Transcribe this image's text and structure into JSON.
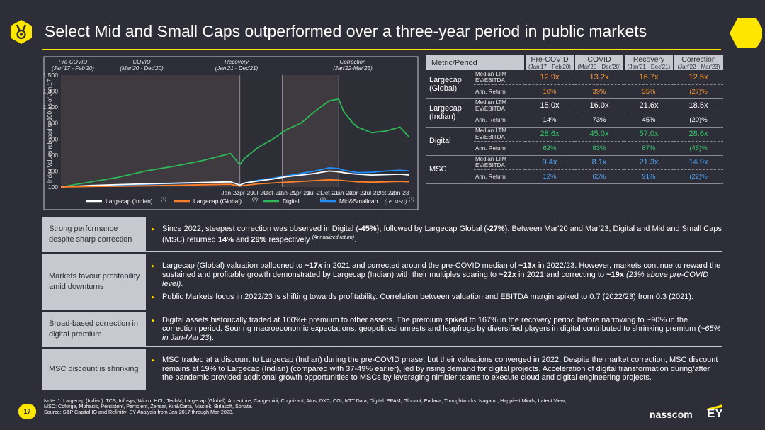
{
  "header": {
    "title": "Select Mid and Small Caps outperformed over a three-year period in public markets"
  },
  "chart_data": {
    "type": "line",
    "ylabel": "Index Values rebased to 100 as of Jan'17",
    "ylim": [
      100,
      1500
    ],
    "yticks": [
      100,
      300,
      500,
      700,
      900,
      1100,
      1300,
      1500
    ],
    "ytick_labels": [
      "100",
      "300",
      "500",
      "700",
      "900",
      "1,100",
      "1,300",
      "1,500"
    ],
    "xlim": [
      0,
      74
    ],
    "xtick_labels": [
      "Jan-20",
      "Apr-20",
      "Jul-20",
      "Oct-20",
      "Jan-21",
      "Apr-21",
      "Jul-21",
      "Oct-21",
      "Jan-22",
      "Apr-22",
      "Jul-22",
      "Oct-22",
      "Jan-23"
    ],
    "xtick_positions": [
      36,
      39,
      42,
      45,
      48,
      51,
      54,
      57,
      60,
      63,
      66,
      69,
      72
    ],
    "phases": [
      {
        "name": "Pre-COVID",
        "range": "(Jan'17 - Feb'20)",
        "start": 0,
        "end": 38
      },
      {
        "name": "COVID",
        "range": "(Mar'20 - Dec'20)",
        "start": 38,
        "end": 47
      },
      {
        "name": "Recovery",
        "range": "(Jan'21 - Dec'21)",
        "start": 47,
        "end": 59
      },
      {
        "name": "Correction",
        "range": "(Jan'22-Mar'23)",
        "start": 59,
        "end": 74
      }
    ],
    "x": [
      0,
      6,
      12,
      18,
      24,
      30,
      36,
      38,
      39,
      42,
      45,
      48,
      51,
      54,
      57,
      59,
      60,
      62,
      63,
      66,
      69,
      72,
      74
    ],
    "series": [
      {
        "name": "Largecap (Indian)",
        "footnote": "(1)",
        "color": "#ffffff",
        "values": [
          100,
          118,
          130,
          140,
          148,
          156,
          165,
          125,
          150,
          175,
          200,
          230,
          250,
          270,
          300,
          290,
          280,
          265,
          260,
          250,
          255,
          260,
          250
        ]
      },
      {
        "name": "Largecap (Global)",
        "footnote": "(1)",
        "color": "#ff7f2a",
        "values": [
          100,
          105,
          110,
          115,
          120,
          128,
          135,
          110,
          120,
          140,
          150,
          160,
          170,
          180,
          190,
          185,
          180,
          170,
          165,
          160,
          165,
          170,
          165
        ]
      },
      {
        "name": "Digital",
        "footnote": "(1)",
        "color": "#2db757",
        "values": [
          100,
          160,
          220,
          300,
          360,
          430,
          520,
          380,
          460,
          600,
          700,
          820,
          900,
          1050,
          1180,
          1200,
          1050,
          900,
          850,
          780,
          800,
          850,
          720
        ]
      },
      {
        "name": "Mid&Smallcap",
        "note": "(i.e. MSC)",
        "footnote": "(1)",
        "color": "#1f8fff",
        "values": [
          100,
          115,
          125,
          135,
          145,
          155,
          165,
          120,
          150,
          185,
          210,
          240,
          270,
          300,
          340,
          330,
          310,
          290,
          280,
          285,
          300,
          310,
          300
        ]
      }
    ]
  },
  "metrics_table": {
    "header": "Metric/Period",
    "phases": [
      {
        "name": "Pre-COVID",
        "range": "(Jan'17 - Feb'20)"
      },
      {
        "name": "COVID",
        "range": "(Mar'20 - Dec'20)"
      },
      {
        "name": "Recovery",
        "range": "(Jan'21 - Dec'21)"
      },
      {
        "name": "Correction",
        "range": "(Jan'22 - Mar'23)"
      }
    ],
    "metric_labels": {
      "valuation": "Median LTM EV/EBITDA",
      "return": "Ann. Return"
    },
    "rows": [
      {
        "entity": "Largecap (Global)",
        "ev": [
          "12.9x",
          "13.2x",
          "16.7x",
          "12.5x"
        ],
        "ret": [
          "10%",
          "39%",
          "35%",
          "(27)%"
        ],
        "color": "#ff9831"
      },
      {
        "entity": "Largecap (Indian)",
        "ev": [
          "15.0x",
          "16.0x",
          "21.6x",
          "18.5x"
        ],
        "ret": [
          "14%",
          "73%",
          "45%",
          "(20)%"
        ],
        "color": "#ffffff"
      },
      {
        "entity": "Digital",
        "ev": [
          "28.6x",
          "45.0x",
          "57.0x",
          "28.6x"
        ],
        "ret": [
          "62%",
          "83%",
          "87%",
          "(45)%"
        ],
        "color": "#34c768"
      },
      {
        "entity": "MSC",
        "ev": [
          "9.4x",
          "8.1x",
          "21.3x",
          "14.9x"
        ],
        "ret": [
          "12%",
          "65%",
          "91%",
          "(22)%"
        ],
        "color": "#4ea7ff"
      }
    ]
  },
  "findings": [
    {
      "label": "Strong performance despite sharp correction",
      "bullets": [
        {
          "parts": [
            "Since 2022, steepest correction was observed in Digital (",
            "-45%",
            "), followed by Largecap Global (",
            "-27%",
            "). Between Mar'20 and Mar'23, Digital and Mid and Small Caps (MSC) returned ",
            "14%",
            " and ",
            "29%",
            " respectively ",
            "(Annualized return)",
            "."
          ]
        }
      ]
    },
    {
      "label": "Markets favour profitability amid downturns",
      "bullets": [
        {
          "parts": [
            "Largecap (Global) valuation ballooned to ",
            "~17x",
            " in 2021 and corrected around the pre-COVID median of ",
            "~13x",
            " in 2022/23. However, markets continue to reward the sustained and profitable growth demonstrated by Largecap (Indian) with their multiples soaring to ",
            "~22x",
            " in 2021 and correcting to ",
            "~19x",
            " ",
            "(23% above pre-COVID level)",
            "."
          ]
        },
        {
          "parts": [
            "Public Markets focus in 2022/23 is shifting towards profitability. Correlation between valuation and EBITDA margin spiked to 0.7 (2022/23) from 0.3 (2021)."
          ]
        }
      ]
    },
    {
      "label": "Broad-based correction in digital premium",
      "bullets": [
        {
          "parts": [
            "Digital assets historically traded at 100%+ premium to other assets. The premium spiked to 167% in the recovery period before narrowing to ~90% in the correction period. Souring macroeconomic expectations, geopolitical unrests and leapfrogs by diversified players in digital contributed to shrinking premium (",
            "~65% in Jan-Mar'23",
            ")."
          ]
        }
      ]
    },
    {
      "label": "MSC discount is shrinking",
      "bullets": [
        {
          "parts": [
            "MSC traded at a discount to Largecap (Indian) during the pre-COVID phase, but their valuations converged in 2022. Despite the market correction, MSC discount remains at 19% to Largecap (Indian) (compared with 37-49% earlier), led by rising demand for digital projects. Acceleration of digital transformation during/after the pandemic provided additional growth opportunities to MSCs by leveraging nimbler teams to execute cloud and digital engineering projects."
          ]
        }
      ]
    }
  ],
  "footnote": {
    "line1": "Note: 1. Largecap (Indian): TCS, Infosys, Wipro, HCL, TechM; Largecap (Global): Accenture, Capgemini, Cognizant, Atos, DXC, CGI, NTT Data; Digital: EPAM, Globant, Endava, Thoughtworks, Nagarro, Happiest Minds, Latent View;",
    "line2": "MSC: Coforge, Mphasis, Persistent, Perficient, Zensar, Kin&Carta, Mastek, Birlasoft, Sonata.",
    "line3": "Source: S&P Capital IQ and Refinitiv; EY Analysis from Jan-2017 through Mar-2023."
  },
  "page_number": "17",
  "logos": {
    "nasscom": "nasscom",
    "ey": "EY"
  }
}
